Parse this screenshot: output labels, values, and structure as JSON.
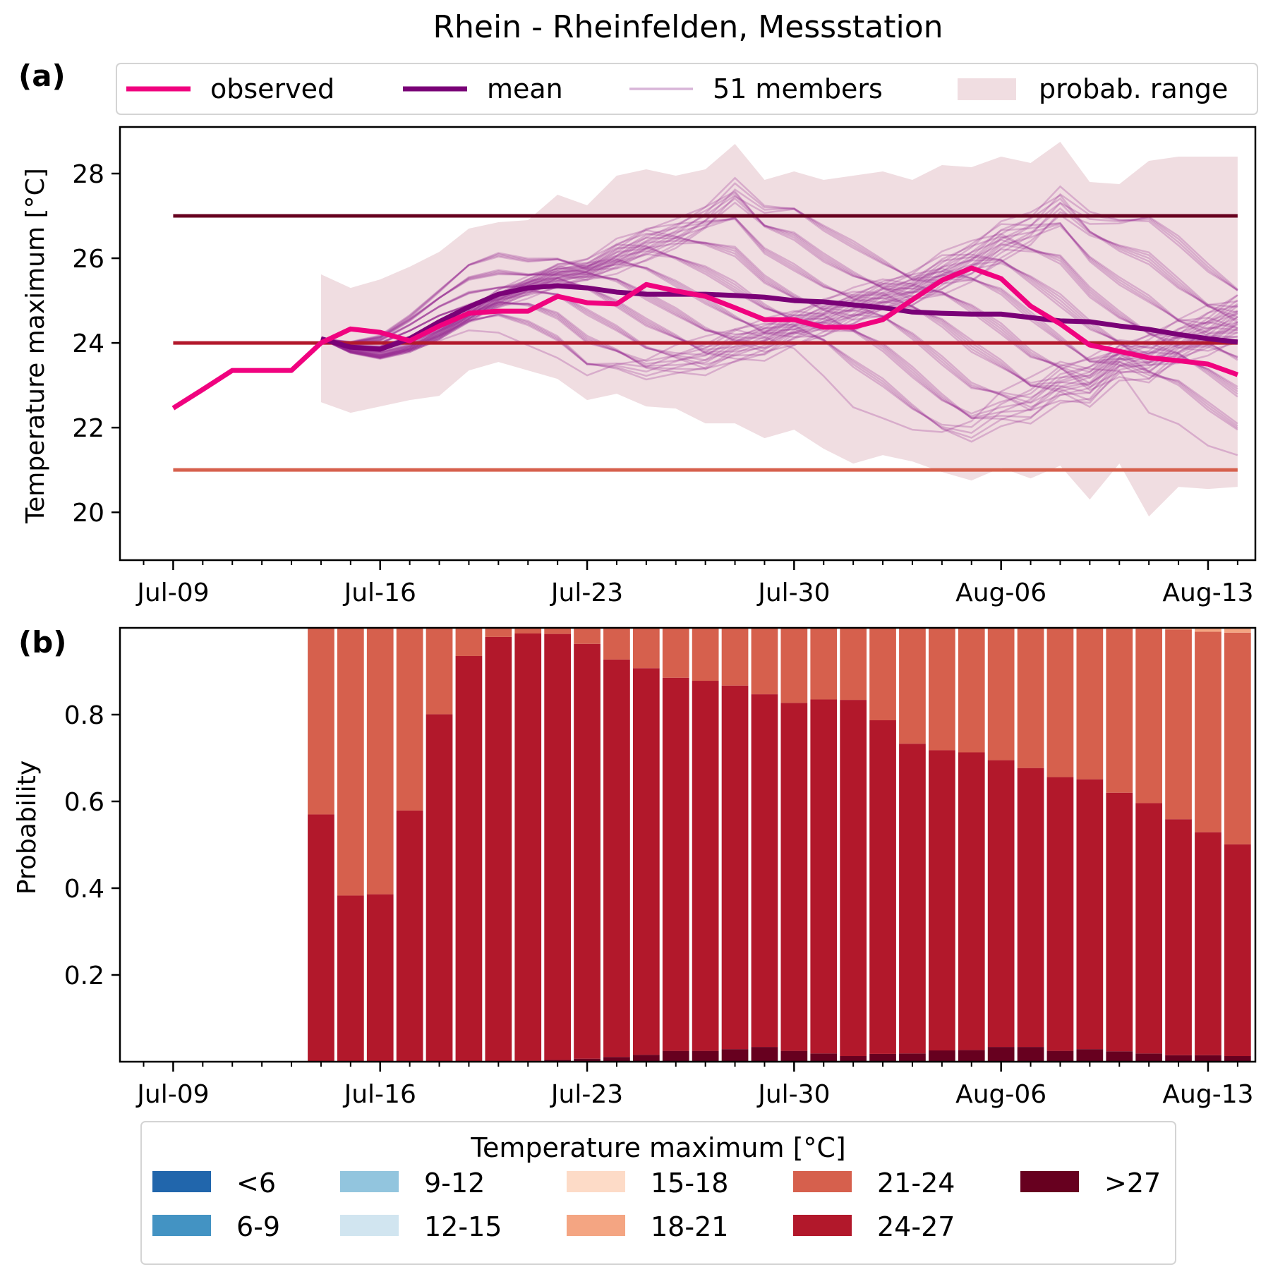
{
  "figure": {
    "title": "Rhein - Rheinfelden, Messstation",
    "panel_a_label": "(a)",
    "panel_b_label": "(b)"
  },
  "legend_top": {
    "items": [
      {
        "label": "observed",
        "type": "line",
        "color": "#f0027f"
      },
      {
        "label": "mean",
        "type": "line",
        "color": "#7a0177"
      },
      {
        "label": "51 members",
        "type": "thin-line",
        "color": "#d8b5d8"
      },
      {
        "label": "probab. range",
        "type": "patch",
        "color": "#f0dde1"
      }
    ]
  },
  "legend_bottom": {
    "title": "Temperature maximum [°C]",
    "items": [
      {
        "label": "<6",
        "color": "#2166ac"
      },
      {
        "label": "6-9",
        "color": "#4393c3"
      },
      {
        "label": "9-12",
        "color": "#92c5de"
      },
      {
        "label": "12-15",
        "color": "#d1e5f0"
      },
      {
        "label": "15-18",
        "color": "#fddbc7"
      },
      {
        "label": "18-21",
        "color": "#f4a582"
      },
      {
        "label": "21-24",
        "color": "#d6604d"
      },
      {
        "label": "24-27",
        "color": "#b2182b"
      },
      {
        "label": ">27",
        "color": "#67001f"
      }
    ]
  },
  "chart_data": [
    {
      "type": "line",
      "panel": "a",
      "ylabel": "Temperature maximum [°C]",
      "xlabel": "",
      "ylim": [
        18.87,
        29.1
      ],
      "yticks": [
        20,
        22,
        24,
        26,
        28
      ],
      "xlim_days": [
        -1.8,
        36.6
      ],
      "x_start_label": "Jul-09",
      "xticks": [
        {
          "day": 0,
          "label": "Jul-09"
        },
        {
          "day": 7,
          "label": "Jul-16"
        },
        {
          "day": 14,
          "label": "Jul-23"
        },
        {
          "day": 21,
          "label": "Jul-30"
        },
        {
          "day": 28,
          "label": "Aug-06"
        },
        {
          "day": 35,
          "label": "Aug-13"
        }
      ],
      "thresholds": [
        {
          "value": 27,
          "color": "#67001f"
        },
        {
          "value": 24,
          "color": "#b2182b"
        },
        {
          "value": 21,
          "color": "#d6604d"
        }
      ],
      "observed": {
        "start_day": 0,
        "values": [
          22.46,
          22.9,
          23.35,
          23.35,
          23.35,
          24.0,
          24.33,
          24.25,
          24.05,
          24.4,
          24.7,
          24.75,
          24.75,
          25.1,
          24.95,
          24.92,
          25.38,
          25.23,
          25.1,
          24.83,
          24.55,
          24.55,
          24.37,
          24.37,
          24.55,
          25.02,
          25.48,
          25.77,
          25.52,
          24.87,
          24.45,
          23.95,
          23.8,
          23.65,
          23.58,
          23.5,
          23.25
        ]
      },
      "mean": {
        "start_day": 5,
        "values": [
          24.1,
          23.9,
          23.85,
          24.1,
          24.5,
          24.85,
          25.15,
          25.3,
          25.35,
          25.3,
          25.2,
          25.15,
          25.15,
          25.15,
          25.12,
          25.08,
          25.0,
          24.97,
          24.9,
          24.83,
          24.73,
          24.7,
          24.68,
          24.68,
          24.6,
          24.52,
          24.5,
          24.4,
          24.32,
          24.2,
          24.1,
          24.02
        ]
      },
      "members_count": 51,
      "probab_range": {
        "start_day": 5,
        "upper": [
          25.62,
          25.3,
          25.5,
          25.8,
          26.15,
          26.7,
          26.85,
          26.9,
          27.5,
          27.25,
          27.95,
          28.1,
          27.95,
          28.1,
          28.7,
          27.85,
          28.05,
          27.85,
          27.95,
          28.05,
          27.85,
          28.2,
          28.15,
          28.4,
          28.25,
          28.75,
          27.8,
          27.75,
          28.3,
          28.4,
          28.4,
          28.4
        ],
        "lower": [
          22.6,
          22.35,
          22.5,
          22.65,
          22.75,
          23.35,
          23.55,
          23.35,
          23.15,
          22.65,
          22.8,
          22.5,
          22.45,
          22.1,
          22.1,
          21.75,
          21.95,
          21.5,
          21.15,
          21.35,
          21.2,
          20.95,
          20.75,
          21.05,
          20.8,
          21.1,
          20.3,
          21.15,
          19.9,
          20.6,
          20.55,
          20.6
        ]
      }
    },
    {
      "type": "bar",
      "stacked": true,
      "panel": "b",
      "ylabel": "Probability",
      "xlabel": "",
      "ylim": [
        0,
        1.0
      ],
      "yticks": [
        0.2,
        0.4,
        0.6,
        0.8
      ],
      "xlim_days": [
        -1.8,
        36.6
      ],
      "xticks": [
        {
          "day": 0,
          "label": "Jul-09"
        },
        {
          "day": 7,
          "label": "Jul-16"
        },
        {
          "day": 14,
          "label": "Jul-23"
        },
        {
          "day": 21,
          "label": "Jul-30"
        },
        {
          "day": 28,
          "label": "Aug-06"
        },
        {
          "day": 35,
          "label": "Aug-13"
        }
      ],
      "start_day": 5,
      "categories": [
        "Jul-14",
        "Jul-15",
        "Jul-16",
        "Jul-17",
        "Jul-18",
        "Jul-19",
        "Jul-20",
        "Jul-21",
        "Jul-22",
        "Jul-23",
        "Jul-24",
        "Jul-25",
        "Jul-26",
        "Jul-27",
        "Jul-28",
        "Jul-29",
        "Jul-30",
        "Jul-31",
        "Aug-01",
        "Aug-02",
        "Aug-03",
        "Aug-04",
        "Aug-05",
        "Aug-06",
        "Aug-07",
        "Aug-08",
        "Aug-09",
        "Aug-10",
        "Aug-11",
        "Aug-12",
        "Aug-13",
        "Aug-14"
      ],
      "series": [
        {
          "name": ">27",
          "color": "#67001f",
          "values": [
            0,
            0,
            0,
            0,
            0,
            0,
            0,
            0.002,
            0.004,
            0.007,
            0.011,
            0.016,
            0.025,
            0.025,
            0.029,
            0.034,
            0.025,
            0.019,
            0.013,
            0.018,
            0.019,
            0.026,
            0.027,
            0.034,
            0.034,
            0.025,
            0.029,
            0.024,
            0.019,
            0.015,
            0.015,
            0.013
          ]
        },
        {
          "name": "24-27",
          "color": "#b2182b",
          "values": [
            0.57,
            0.383,
            0.386,
            0.579,
            0.801,
            0.935,
            0.979,
            0.985,
            0.982,
            0.956,
            0.916,
            0.891,
            0.86,
            0.853,
            0.838,
            0.813,
            0.802,
            0.816,
            0.821,
            0.769,
            0.714,
            0.692,
            0.686,
            0.661,
            0.643,
            0.631,
            0.622,
            0.596,
            0.577,
            0.544,
            0.514,
            0.488
          ]
        },
        {
          "name": "21-24",
          "color": "#d6604d",
          "values": [
            0.43,
            0.617,
            0.614,
            0.421,
            0.199,
            0.065,
            0.021,
            0.013,
            0.014,
            0.037,
            0.073,
            0.093,
            0.115,
            0.122,
            0.133,
            0.153,
            0.173,
            0.165,
            0.166,
            0.213,
            0.267,
            0.282,
            0.287,
            0.305,
            0.323,
            0.344,
            0.349,
            0.378,
            0.402,
            0.437,
            0.462,
            0.488
          ]
        },
        {
          "name": "18-21",
          "color": "#f4a582",
          "values": [
            0,
            0,
            0,
            0,
            0,
            0,
            0,
            0,
            0,
            0,
            0,
            0,
            0,
            0,
            0,
            0,
            0,
            0,
            0,
            0,
            0,
            0,
            0,
            0,
            0,
            0,
            0,
            0.002,
            0.002,
            0.004,
            0.009,
            0.011
          ]
        }
      ]
    }
  ]
}
